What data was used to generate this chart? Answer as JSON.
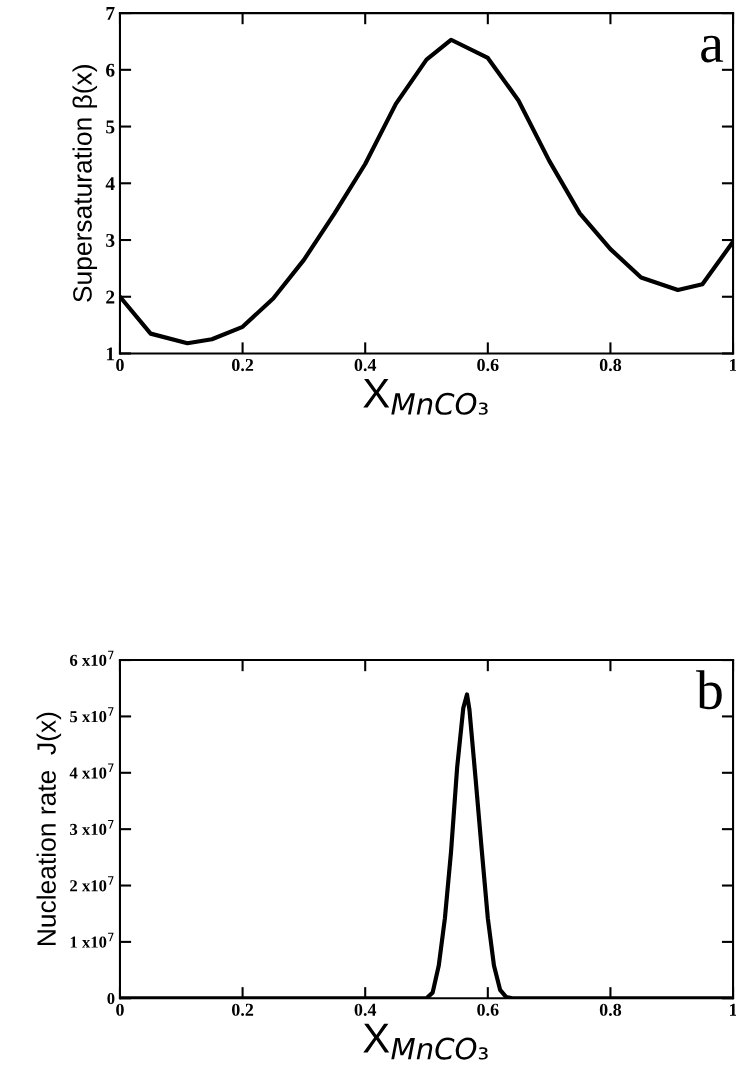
{
  "chart_data": [
    {
      "type": "line",
      "ylabel": "Supersaturation β(x)",
      "xlabel": "X$_{MnCO₃}$",
      "annotations": [
        "a"
      ],
      "x": [
        0,
        0.05,
        0.11,
        0.15,
        0.2,
        0.25,
        0.3,
        0.35,
        0.4,
        0.45,
        0.5,
        0.54,
        0.6,
        0.65,
        0.7,
        0.75,
        0.8,
        0.85,
        0.91,
        0.95,
        1
      ],
      "series": [
        {
          "color": "#000000",
          "values": [
            2.0,
            1.35,
            1.18,
            1.25,
            1.47,
            1.97,
            2.65,
            3.47,
            4.34,
            5.4,
            6.18,
            6.53,
            6.21,
            5.46,
            4.4,
            3.47,
            2.84,
            2.34,
            2.12,
            2.22,
            2.97
          ]
        }
      ],
      "xlim": [
        0,
        1
      ],
      "ylim": [
        1,
        7
      ],
      "xticks": [
        0,
        0.2,
        0.4,
        0.6,
        0.8,
        1
      ],
      "yticks": [
        1,
        2,
        3,
        4,
        5,
        6,
        7
      ],
      "grid": false,
      "legend": false
    },
    {
      "type": "line",
      "ylabel": "Nucleation rate  J(x)",
      "xlabel": "X$_{MnCO₃}$",
      "annotations": [
        "b"
      ],
      "x": [
        0,
        0.49,
        0.5,
        0.51,
        0.52,
        0.53,
        0.54,
        0.55,
        0.56,
        0.566,
        0.57,
        0.58,
        0.59,
        0.6,
        0.61,
        0.62,
        0.63,
        0.64,
        1
      ],
      "series": [
        {
          "color": "#000000",
          "values": [
            0,
            0,
            0,
            1000000,
            5800000,
            14200000,
            26000000,
            41000000,
            51500000,
            53900000,
            51200000,
            39000000,
            26400000,
            14200000,
            5800000,
            1500000,
            200000,
            0,
            0
          ]
        }
      ],
      "xlim": [
        0,
        1
      ],
      "ylim": [
        0,
        60000000
      ],
      "xticks": [
        0,
        0.2,
        0.4,
        0.6,
        0.8,
        1
      ],
      "yticks": [
        0,
        {
          "value": 10000000,
          "label": "1 x10$^{7}$"
        },
        {
          "value": 20000000,
          "label": "2 x10$^{7}$"
        },
        {
          "value": 30000000,
          "label": "3 x10$^{7}$"
        },
        {
          "value": 40000000,
          "label": "4 x10$^{7}$"
        },
        {
          "value": 50000000,
          "label": "5 x10$^{7}$"
        },
        {
          "value": 60000000,
          "label": "6 x10$^{7}$"
        }
      ],
      "grid": false,
      "legend": false
    }
  ]
}
